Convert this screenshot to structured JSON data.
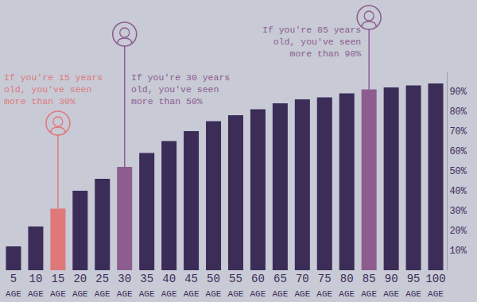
{
  "chart_data": {
    "type": "bar",
    "categories": [
      "5",
      "10",
      "15",
      "20",
      "25",
      "30",
      "35",
      "40",
      "45",
      "50",
      "55",
      "60",
      "65",
      "70",
      "75",
      "80",
      "85",
      "90",
      "95",
      "100"
    ],
    "xlabel": "AGE",
    "values": [
      12,
      22,
      31,
      40,
      46,
      52,
      59,
      65,
      70,
      75,
      78,
      81,
      84,
      86,
      87,
      89,
      91,
      92,
      93,
      94
    ],
    "colors": [
      "#3b2c58",
      "#3b2c58",
      "#e0787a",
      "#3b2c58",
      "#3b2c58",
      "#8c5d8e",
      "#3b2c58",
      "#3b2c58",
      "#3b2c58",
      "#3b2c58",
      "#3b2c58",
      "#3b2c58",
      "#3b2c58",
      "#3b2c58",
      "#3b2c58",
      "#3b2c58",
      "#8c5d8e",
      "#3b2c58",
      "#3b2c58",
      "#3b2c58"
    ],
    "ylim": [
      0,
      100
    ],
    "yticks": [
      {
        "value": 10,
        "label": "10%"
      },
      {
        "value": 20,
        "label": "20%"
      },
      {
        "value": 30,
        "label": "30%"
      },
      {
        "value": 40,
        "label": "40%"
      },
      {
        "value": 50,
        "label": "50%"
      },
      {
        "value": 60,
        "label": "60%"
      },
      {
        "value": 70,
        "label": "70%"
      },
      {
        "value": 80,
        "label": "80%"
      },
      {
        "value": 90,
        "label": "90%"
      }
    ],
    "grid": false,
    "annotations": [
      {
        "category": "15",
        "text": "If you're 15 years\nold, you've seen\nmore than 30%"
      },
      {
        "category": "30",
        "text": "If you're 30 years\nold, you've seen\nmore than 50%"
      },
      {
        "category": "85",
        "text": "If you're 85 years\nold, you've seen\nmore than 90%"
      }
    ]
  }
}
